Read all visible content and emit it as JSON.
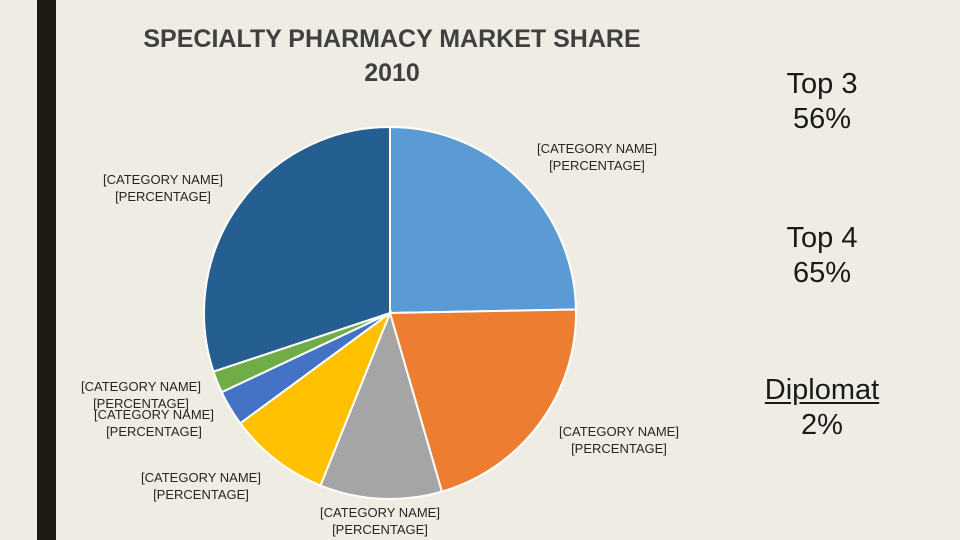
{
  "chart_data": {
    "type": "pie",
    "title": "SPECIALTY PHARMACY MARKET SHARE",
    "subtitle": "2010",
    "slices": [
      {
        "label": "[CATEGORY NAME]",
        "value_label": "[PERCENTAGE]",
        "value": 24.7,
        "color": "#5b9bd5"
      },
      {
        "label": "[CATEGORY NAME]",
        "value_label": "[PERCENTAGE]",
        "value": 20.8,
        "color": "#ed7d31"
      },
      {
        "label": "[CATEGORY NAME]",
        "value_label": "[PERCENTAGE]",
        "value": 10.6,
        "color": "#a5a5a5"
      },
      {
        "label": "[CATEGORY NAME]",
        "value_label": "[PERCENTAGE]",
        "value": 8.8,
        "color": "#ffc000"
      },
      {
        "label": "[CATEGORY NAME]",
        "value_label": "[PERCENTAGE]",
        "value": 3.1,
        "color": "#4472c4"
      },
      {
        "label": "[CATEGORY NAME]",
        "value_label": "[PERCENTAGE]",
        "value": 1.9,
        "color": "#70ad47"
      },
      {
        "label": "[CATEGORY NAME]",
        "value_label": "[PERCENTAGE]",
        "value": 30.1,
        "color": "#255e91"
      }
    ]
  },
  "stats": [
    {
      "name": "Top 3",
      "value": "56%"
    },
    {
      "name": "Top 4",
      "value": "65%"
    },
    {
      "name": "Diplomat",
      "value": "2%"
    }
  ]
}
